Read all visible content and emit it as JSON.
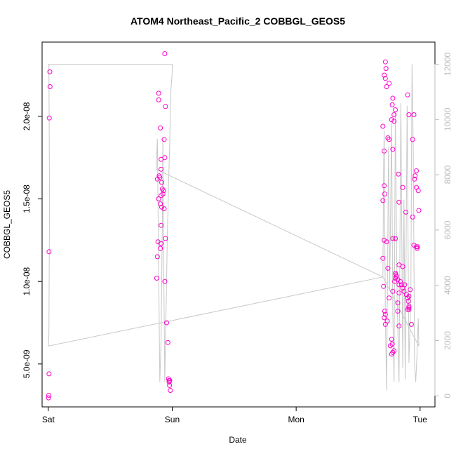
{
  "chart_data": {
    "type": "scatter",
    "title": "ATOM4 Northeast_Pacific_2 COBBGL_GEOS5",
    "xlabel": "Date",
    "ylabel": "COBBGL_GEOS5",
    "x_ticks": [
      "Sat",
      "Sun",
      "Mon",
      "Tue"
    ],
    "x_range_days": [
      -0.05,
      3.12
    ],
    "ylim": [
      2.4e-09,
      2.45e-08
    ],
    "y_ticks": [
      "5.0e-09",
      "1.0e-08",
      "1.5e-08",
      "2.0e-08"
    ],
    "y_tick_values": [
      5e-09,
      1e-08,
      1.5e-08,
      2e-08
    ],
    "y2_ticks": [
      "0",
      "2000",
      "4000",
      "6000",
      "8000",
      "10000",
      "12000"
    ],
    "y2_tick_values": [
      0,
      2000,
      4000,
      6000,
      8000,
      10000,
      12000
    ],
    "y2lim": [
      -400,
      12800
    ],
    "grid": false,
    "colors": {
      "points": "#ff00cc",
      "altitude_line": "#c8c8c8",
      "right_axis": "#bdbdbd",
      "frame": "#000000"
    },
    "series": [
      {
        "type": "scatter",
        "points": [
          [
            0.012,
            2.27e-08
          ],
          [
            0.014,
            2.18e-08
          ],
          [
            0.008,
            1.99e-08
          ],
          [
            0.006,
            1.18e-08
          ],
          [
            0.006,
            4.4e-09
          ],
          [
            0.004,
            3.1e-09
          ],
          [
            0.002,
            2.95e-09
          ],
          [
            0.89,
            2.14e-08
          ],
          [
            0.89,
            2.1e-08
          ],
          [
            0.905,
            1.93e-08
          ],
          [
            0.945,
            2.06e-08
          ],
          [
            0.935,
            1.86e-08
          ],
          [
            0.94,
            1.75e-08
          ],
          [
            0.91,
            1.74e-08
          ],
          [
            0.91,
            1.68e-08
          ],
          [
            0.895,
            1.64e-08
          ],
          [
            0.9,
            1.63e-08
          ],
          [
            0.88,
            1.62e-08
          ],
          [
            0.915,
            1.6e-08
          ],
          [
            0.92,
            1.56e-08
          ],
          [
            0.93,
            1.55e-08
          ],
          [
            0.925,
            1.53e-08
          ],
          [
            0.91,
            1.52e-08
          ],
          [
            0.89,
            1.5e-08
          ],
          [
            0.905,
            1.47e-08
          ],
          [
            0.915,
            1.45e-08
          ],
          [
            0.935,
            1.44e-08
          ],
          [
            0.91,
            1.34e-08
          ],
          [
            0.945,
            1.26e-08
          ],
          [
            0.885,
            1.24e-08
          ],
          [
            0.91,
            1.23e-08
          ],
          [
            0.905,
            1.2e-08
          ],
          [
            0.88,
            1.15e-08
          ],
          [
            0.875,
            1.02e-08
          ],
          [
            0.94,
            1e-08
          ],
          [
            0.955,
            7.5e-09
          ],
          [
            0.965,
            6.3e-09
          ],
          [
            0.97,
            4.1e-09
          ],
          [
            0.975,
            4e-09
          ],
          [
            0.975,
            3.9e-09
          ],
          [
            0.98,
            4e-09
          ],
          [
            0.978,
            3.7e-09
          ],
          [
            0.985,
            3.4e-09
          ],
          [
            0.94,
            2.38e-08
          ],
          [
            2.72,
            2.33e-08
          ],
          [
            2.725,
            2.29e-08
          ],
          [
            2.71,
            2.25e-08
          ],
          [
            2.72,
            2.23e-08
          ],
          [
            2.73,
            2.18e-08
          ],
          [
            2.75,
            2.2e-08
          ],
          [
            2.78,
            2.11e-08
          ],
          [
            2.775,
            2.07e-08
          ],
          [
            2.8,
            2.04e-08
          ],
          [
            2.79,
            2.01e-08
          ],
          [
            2.9,
            2.13e-08
          ],
          [
            2.91,
            2.01e-08
          ],
          [
            2.79,
            1.97e-08
          ],
          [
            2.77,
            1.98e-08
          ],
          [
            2.7,
            1.94e-08
          ],
          [
            2.74,
            1.87e-08
          ],
          [
            2.75,
            1.86e-08
          ],
          [
            2.78,
            1.8e-08
          ],
          [
            2.94,
            1.86e-08
          ],
          [
            2.95,
            2.01e-08
          ],
          [
            2.71,
            1.79e-08
          ],
          [
            2.71,
            1.58e-08
          ],
          [
            2.715,
            1.53e-08
          ],
          [
            2.7,
            1.49e-08
          ],
          [
            2.825,
            1.65e-08
          ],
          [
            2.86,
            1.57e-08
          ],
          [
            2.97,
            1.67e-08
          ],
          [
            2.96,
            1.64e-08
          ],
          [
            2.955,
            1.62e-08
          ],
          [
            2.97,
            1.57e-08
          ],
          [
            2.985,
            1.55e-08
          ],
          [
            2.99,
            1.43e-08
          ],
          [
            2.83,
            1.48e-08
          ],
          [
            2.885,
            1.42e-08
          ],
          [
            2.94,
            1.39e-08
          ],
          [
            2.71,
            1.25e-08
          ],
          [
            2.73,
            1.24e-08
          ],
          [
            2.78,
            1.26e-08
          ],
          [
            2.8,
            1.26e-08
          ],
          [
            2.95,
            1.22e-08
          ],
          [
            2.97,
            1.21e-08
          ],
          [
            2.98,
            1.21e-08
          ],
          [
            2.975,
            1.2e-08
          ],
          [
            2.7,
            1.14e-08
          ],
          [
            2.74,
            1.08e-08
          ],
          [
            2.83,
            1.1e-08
          ],
          [
            2.86,
            1.09e-08
          ],
          [
            2.8,
            1.05e-08
          ],
          [
            2.805,
            1.04e-08
          ],
          [
            2.81,
            1.03e-08
          ],
          [
            2.8,
            1.02e-08
          ],
          [
            2.795,
            1e-08
          ],
          [
            2.82,
            1.01e-08
          ],
          [
            2.83,
            9.8e-09
          ],
          [
            2.84,
            1e-08
          ],
          [
            2.85,
            9.8e-09
          ],
          [
            2.86,
            9.6e-09
          ],
          [
            2.87,
            9.4e-09
          ],
          [
            2.875,
            9.8e-09
          ],
          [
            2.89,
            9.2e-09
          ],
          [
            2.9,
            9e-09
          ],
          [
            2.91,
            8.5e-09
          ],
          [
            2.91,
            8.3e-09
          ],
          [
            2.92,
            9.5e-09
          ],
          [
            2.83,
            9.3e-09
          ],
          [
            2.78,
            9.4e-09
          ],
          [
            2.75,
            9e-09
          ],
          [
            2.82,
            8.7e-09
          ],
          [
            2.82,
            8.2e-09
          ],
          [
            2.705,
            9.7e-09
          ],
          [
            2.715,
            8.2e-09
          ],
          [
            2.72,
            8e-09
          ],
          [
            2.71,
            7.8e-09
          ],
          [
            2.735,
            7.6e-09
          ],
          [
            2.72,
            7.4e-09
          ],
          [
            2.83,
            7.3e-09
          ],
          [
            2.93,
            7.4e-09
          ],
          [
            2.77,
            6.5e-09
          ],
          [
            2.775,
            6.2e-09
          ],
          [
            2.76,
            6.1e-09
          ],
          [
            2.79,
            5.8e-09
          ],
          [
            2.77,
            5.6e-09
          ],
          [
            2.78,
            5.7e-09
          ],
          [
            2.91,
            9.1e-09
          ],
          [
            2.905,
            8.8e-09
          ],
          [
            2.91,
            8.4e-09
          ],
          [
            2.9,
            8.3e-09
          ]
        ]
      },
      {
        "type": "line",
        "axis": "right",
        "points": [
          [
            0.0,
            12000
          ],
          [
            1.0,
            12000
          ],
          [
            1.0,
            11700
          ],
          [
            0.99,
            11100
          ],
          [
            0.985,
            10300
          ],
          [
            0.98,
            9200
          ],
          [
            0.97,
            7600
          ],
          [
            0.96,
            5600
          ],
          [
            0.95,
            3000
          ],
          [
            0.94,
            500
          ],
          [
            0.93,
            5500
          ],
          [
            0.925,
            9300
          ],
          [
            0.92,
            6300
          ],
          [
            0.91,
            2000
          ],
          [
            0.9,
            500
          ],
          [
            0.88,
            9300
          ],
          [
            0.87,
            8200
          ],
          [
            2.7,
            4300
          ],
          [
            2.705,
            8000
          ],
          [
            2.71,
            9600
          ],
          [
            2.715,
            6000
          ],
          [
            2.72,
            3000
          ],
          [
            2.73,
            200
          ],
          [
            2.745,
            9000
          ],
          [
            2.755,
            3800
          ],
          [
            2.77,
            9900
          ],
          [
            2.78,
            3000
          ],
          [
            2.79,
            500
          ],
          [
            2.8,
            10300
          ],
          [
            2.815,
            3500
          ],
          [
            2.83,
            500
          ],
          [
            2.845,
            10600
          ],
          [
            2.86,
            1000
          ],
          [
            2.87,
            7100
          ],
          [
            2.88,
            600
          ],
          [
            2.895,
            10500
          ],
          [
            2.91,
            1200
          ],
          [
            2.925,
            3400
          ],
          [
            2.935,
            12000
          ],
          [
            2.945,
            9000
          ],
          [
            2.955,
            1200
          ],
          [
            2.965,
            500
          ],
          [
            2.975,
            1500
          ],
          [
            2.985,
            2800
          ],
          [
            2.99,
            1800
          ],
          [
            2.7,
            4300
          ],
          [
            0.0,
            1800
          ],
          [
            0.005,
            2200
          ],
          [
            0.01,
            7000
          ],
          [
            0.005,
            12000
          ]
        ]
      }
    ]
  }
}
